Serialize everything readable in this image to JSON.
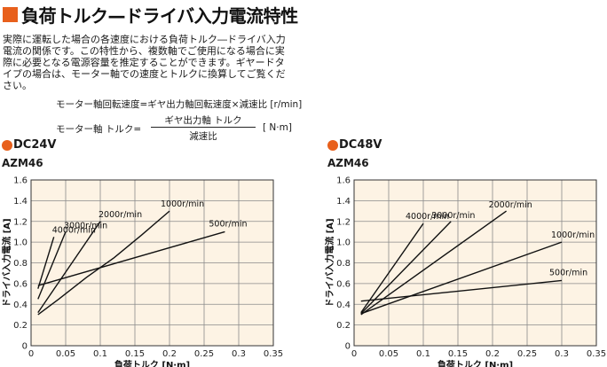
{
  "header": {
    "title": "負荷トルク—ドライバ入力電流特性",
    "accent": "#e8601c"
  },
  "intro": {
    "lines": [
      "実際に運転した場合の各速度における負荷トルク―ドライバ入力",
      "電流の関係です。この特性から、複数軸でご使用になる場合に実",
      "際に必要となる電源容量を推定することができます。ギヤードタ",
      "イプの場合は、モーター軸での速度とトルクに換算してご覧くだ",
      "さい。"
    ]
  },
  "formulas": {
    "speed": "モーター軸回転速度=ギヤ出力軸回転速度×減速比 [r/min]",
    "torque_label": "モーター軸 トルク=",
    "torque_numerator": "ギヤ出力軸 トルク",
    "torque_denominator": "減速比",
    "torque_unit": "[ N·m]"
  },
  "charts": [
    {
      "heading": "DC24V",
      "model": "AZM46"
    },
    {
      "heading": "DC48V",
      "model": "AZM46"
    }
  ],
  "chart_data": [
    {
      "type": "line",
      "title": "DC24V AZM46",
      "xlabel": "負荷トルク [N·m]",
      "ylabel": "ドライバ入力電流 [A]",
      "xlim": [
        0,
        0.35
      ],
      "ylim": [
        0,
        1.6
      ],
      "xticks": [
        "0",
        "0.05",
        "0.1",
        "0.15",
        "0.2",
        "0.25",
        "0.3",
        "0.35"
      ],
      "yticks": [
        "0",
        "0.2",
        "0.4",
        "0.6",
        "0.8",
        "1.0",
        "1.2",
        "1.4",
        "1.6"
      ],
      "grid": true,
      "series": [
        {
          "name": "4000r/min",
          "points": [
            [
              0.01,
              0.55
            ],
            [
              0.033,
              1.05
            ]
          ]
        },
        {
          "name": "3000r/min",
          "points": [
            [
              0.01,
              0.45
            ],
            [
              0.05,
              1.1
            ]
          ]
        },
        {
          "name": "2000r/min",
          "points": [
            [
              0.01,
              0.32
            ],
            [
              0.1,
              1.2
            ]
          ]
        },
        {
          "name": "1000r/min",
          "points": [
            [
              0.01,
              0.3
            ],
            [
              0.04,
              0.45
            ],
            [
              0.08,
              0.66
            ],
            [
              0.12,
              0.85
            ],
            [
              0.16,
              1.07
            ],
            [
              0.2,
              1.3
            ]
          ]
        },
        {
          "name": "500r/min",
          "points": [
            [
              0.01,
              0.58
            ],
            [
              0.28,
              1.1
            ]
          ]
        }
      ]
    },
    {
      "type": "line",
      "title": "DC48V AZM46",
      "xlabel": "負荷トルク [N·m]",
      "ylabel": "ドライバ入力電流 [A]",
      "xlim": [
        0,
        0.35
      ],
      "ylim": [
        0,
        1.6
      ],
      "xticks": [
        "0",
        "0.05",
        "0.1",
        "0.15",
        "0.2",
        "0.25",
        "0.3",
        "0.35"
      ],
      "yticks": [
        "0",
        "0.2",
        "0.4",
        "0.6",
        "0.8",
        "1.0",
        "1.2",
        "1.4",
        "1.6"
      ],
      "grid": true,
      "series": [
        {
          "name": "4000r/min",
          "points": [
            [
              0.01,
              0.32
            ],
            [
              0.1,
              1.18
            ]
          ]
        },
        {
          "name": "3000r/min",
          "points": [
            [
              0.01,
              0.31
            ],
            [
              0.14,
              1.2
            ]
          ]
        },
        {
          "name": "2000r/min",
          "points": [
            [
              0.01,
              0.3
            ],
            [
              0.22,
              1.3
            ]
          ]
        },
        {
          "name": "1000r/min",
          "points": [
            [
              0.01,
              0.31
            ],
            [
              0.3,
              1.0
            ]
          ]
        },
        {
          "name": "500r/min",
          "points": [
            [
              0.01,
              0.43
            ],
            [
              0.3,
              0.63
            ]
          ]
        }
      ]
    }
  ],
  "colors": {
    "plot_bg": "#fdf3e4",
    "grid": "#8a8a8a",
    "line": "#111111"
  }
}
